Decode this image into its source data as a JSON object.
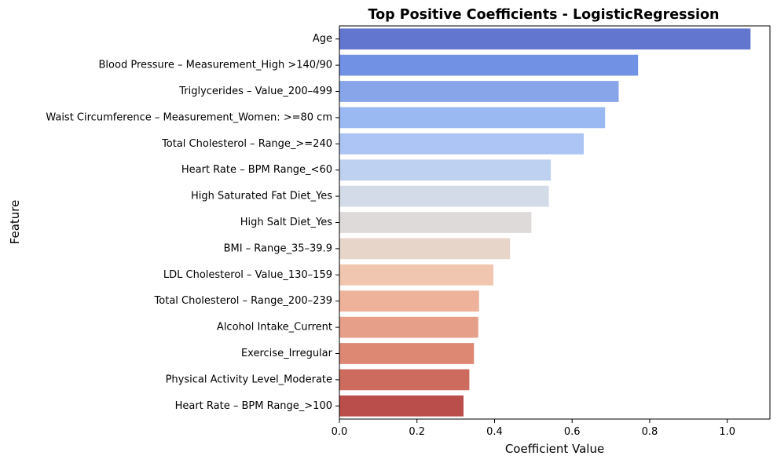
{
  "chart_data": {
    "type": "bar",
    "orientation": "horizontal",
    "title": "Top Positive Coefficients - LogisticRegression",
    "xlabel": "Coefficient Value",
    "ylabel": "Feature",
    "xlim": [
      0,
      1.11
    ],
    "xticks": [
      0.0,
      0.2,
      0.4,
      0.6,
      0.8,
      1.0
    ],
    "xtick_labels": [
      "0.0",
      "0.2",
      "0.4",
      "0.6",
      "0.8",
      "1.0"
    ],
    "grid": false,
    "palette": "coolwarm",
    "categories": [
      "Age",
      "Blood Pressure – Measurement_High >140/90",
      "Triglycerides – Value_200–499",
      "Waist Circumference – Measurement_Women: >=80 cm",
      "Total Cholesterol – Range_>=240",
      "Heart Rate – BPM Range_<60",
      "High Saturated Fat Diet_Yes",
      "High Salt Diet_Yes",
      "BMI – Range_35–39.9",
      "LDL Cholesterol – Value_130–159",
      "Total Cholesterol – Range_200–239",
      "Alcohol Intake_Current",
      "Exercise_Irregular",
      "Physical Activity Level_Moderate",
      "Heart Rate – BPM Range_>100"
    ],
    "values": [
      1.06,
      0.77,
      0.72,
      0.685,
      0.63,
      0.545,
      0.54,
      0.495,
      0.44,
      0.397,
      0.36,
      0.358,
      0.347,
      0.335,
      0.32
    ],
    "colors": [
      "#6276cf",
      "#7191e4",
      "#87a5e8",
      "#9ab8f1",
      "#adc5f5",
      "#bfd1f0",
      "#d3dbe9",
      "#dedad9",
      "#e8d5c9",
      "#f1c6b0",
      "#eeb29a",
      "#e6a08a",
      "#dc8872",
      "#cc6b5e",
      "#ba4e4a"
    ]
  }
}
